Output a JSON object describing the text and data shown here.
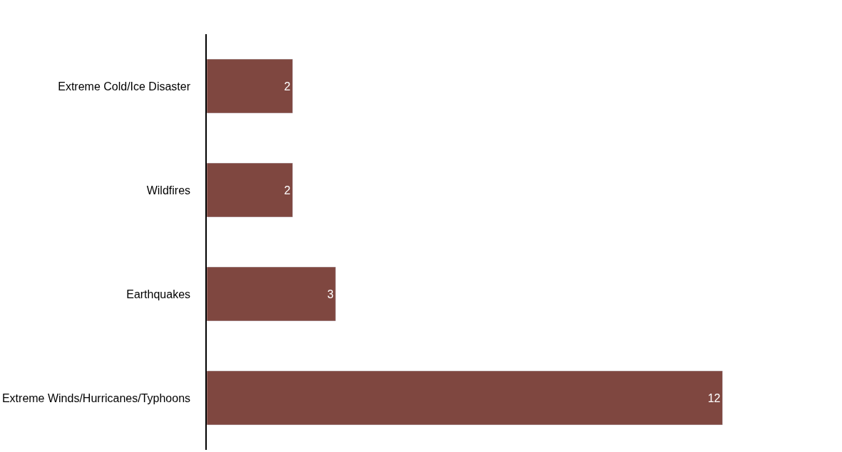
{
  "chart_data": {
    "type": "bar",
    "orientation": "horizontal",
    "categories": [
      "Extreme Cold/Ice Disaster",
      "Wildfires",
      "Earthquakes",
      "Extreme Winds/Hurricanes/Typhoons"
    ],
    "values": [
      2,
      2,
      3,
      12
    ],
    "color": "#7f4740",
    "data_labels": true
  }
}
